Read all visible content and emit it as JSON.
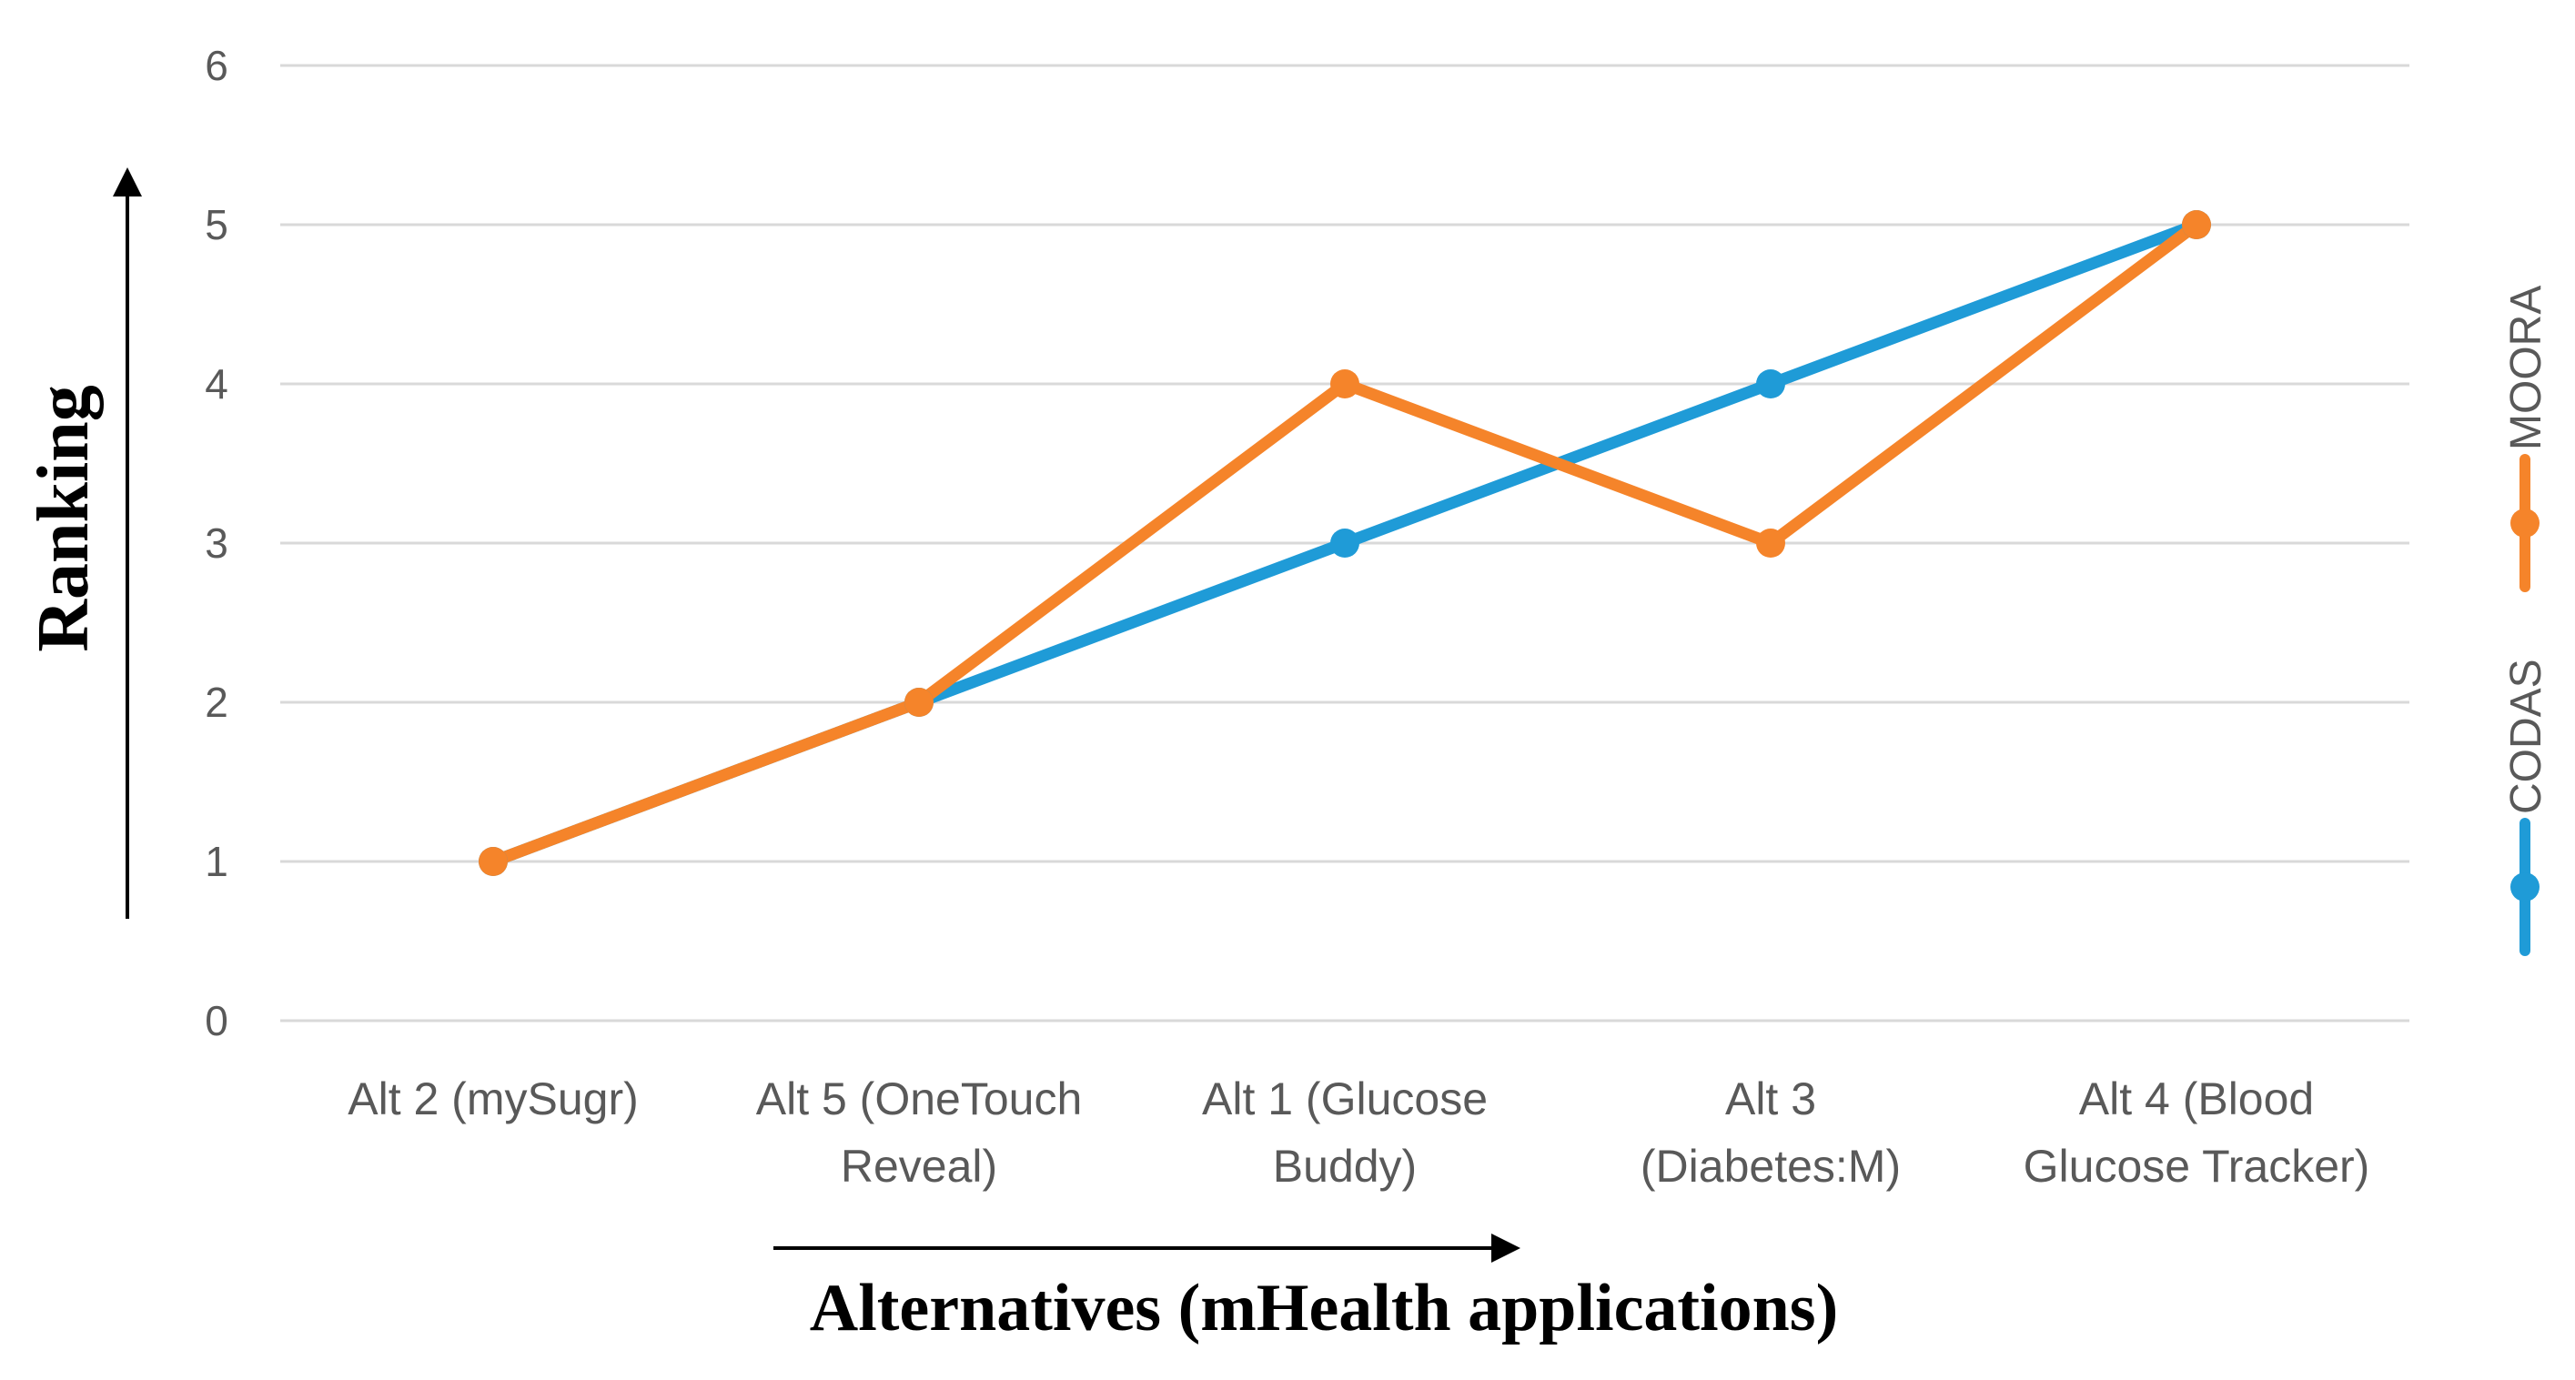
{
  "chart_data": {
    "type": "line",
    "title": "",
    "xlabel": "Alternatives (mHealth applications)",
    "ylabel": "Ranking",
    "ylim": [
      0,
      6
    ],
    "yticks": [
      0,
      1,
      2,
      3,
      4,
      5,
      6
    ],
    "grid": true,
    "legend_position": "right (rotated, vertical)",
    "categories": [
      [
        "Alt 2 (mySugr)"
      ],
      [
        "Alt 5 (OneTouch",
        "Reveal)"
      ],
      [
        "Alt 1 (Glucose",
        "Buddy)"
      ],
      [
        "Alt 3",
        "(Diabetes:M)"
      ],
      [
        "Alt 4 (Blood",
        "Glucose Tracker)"
      ]
    ],
    "series": [
      {
        "name": "CODAS",
        "color": "#1f9bd7",
        "values": [
          1,
          2,
          3,
          4,
          5
        ]
      },
      {
        "name": "MOORA",
        "color": "#f5842a",
        "values": [
          1,
          2,
          4,
          3,
          5
        ]
      }
    ]
  }
}
